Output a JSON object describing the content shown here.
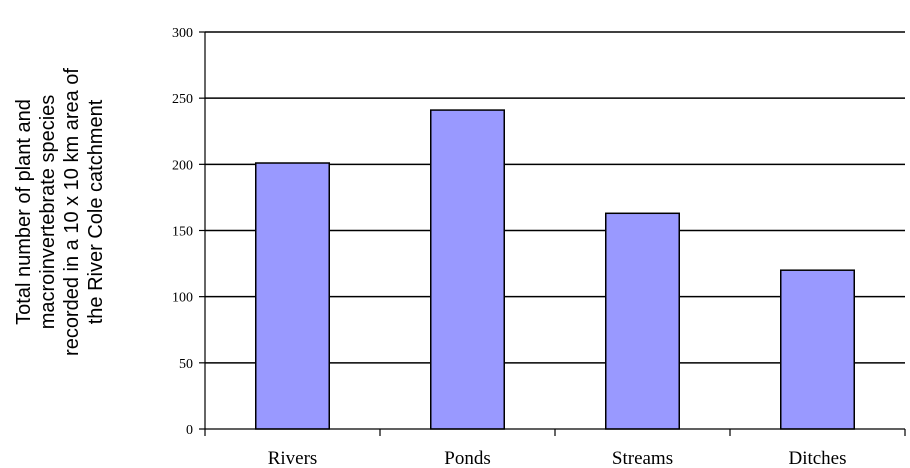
{
  "chart_data": {
    "type": "bar",
    "categories": [
      "Rivers",
      "Ponds",
      "Streams",
      "Ditches"
    ],
    "values": [
      201,
      241,
      163,
      120
    ],
    "title": "",
    "xlabel": "",
    "ylabel_lines": [
      "Total number of plant and",
      "macroinvertebrate species",
      "recorded in a 10 x 10 km area of",
      "the River Cole catchment"
    ],
    "ylim": [
      0,
      300
    ],
    "yticks": [
      "0",
      "50",
      "100",
      "150",
      "200",
      "250",
      "300"
    ],
    "grid": true,
    "legend": "none",
    "bar_color": "#9999ff",
    "bar_edge_color": "#000000",
    "grid_color": "#000000"
  }
}
